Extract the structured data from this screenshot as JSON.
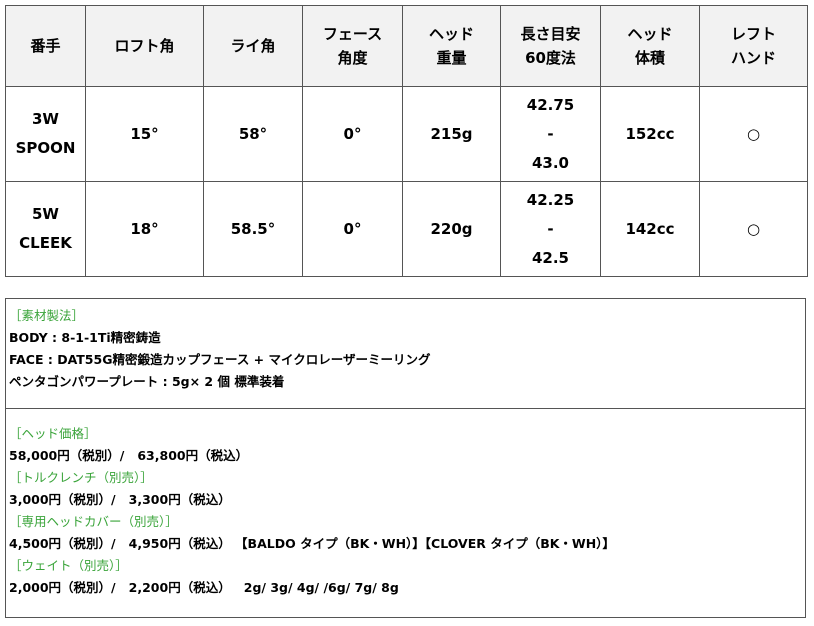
{
  "spec_table": {
    "headers": [
      "番手",
      "ロフト角",
      "ライ角",
      "フェース\n角度",
      "ヘッド\n重量",
      "長さ目安\n60度法",
      "ヘッド\n体積",
      "レフト\nハンド"
    ],
    "rows": [
      [
        "3W\nSPOON",
        "15°",
        "58°",
        "0°",
        "215g",
        "42.75\n-\n43.0",
        "152cc",
        "○"
      ],
      [
        "5W\nCLEEK",
        "18°",
        "58.5°",
        "0°",
        "220g",
        "42.25\n-\n42.5",
        "142cc",
        "○"
      ]
    ]
  },
  "material": {
    "heading": "［素材製法］",
    "lines": [
      "BODY : 8-1-1Ti精密鋳造",
      "FACE : DAT55G精密鍛造カップフェース + マイクロレーザーミーリング",
      "ペンタゴンパワープレート : 5g× 2 個 標準装着"
    ]
  },
  "pricing": [
    {
      "heading": "［ヘッド価格］",
      "line": "58,000円（税別）/   63,800円（税込）"
    },
    {
      "heading": "［トルクレンチ（別売）］",
      "line": "3,000円（税別）/   3,300円（税込）"
    },
    {
      "heading": "［専用ヘッドカバー（別売）］",
      "line": "4,500円（税別）/   4,950円（税込） 【BALDO タイプ（BK・WH）】【CLOVER タイプ（BK・WH）】"
    },
    {
      "heading": "［ウェイト（別売）］",
      "line": "2,000円（税別）/   2,200円（税込）   2g/ 3g/ 4g/ /6g/ 7g/ 8g"
    }
  ],
  "colors": {
    "heading_green": "#3aa43a",
    "header_bg": "#f2f2f2"
  }
}
